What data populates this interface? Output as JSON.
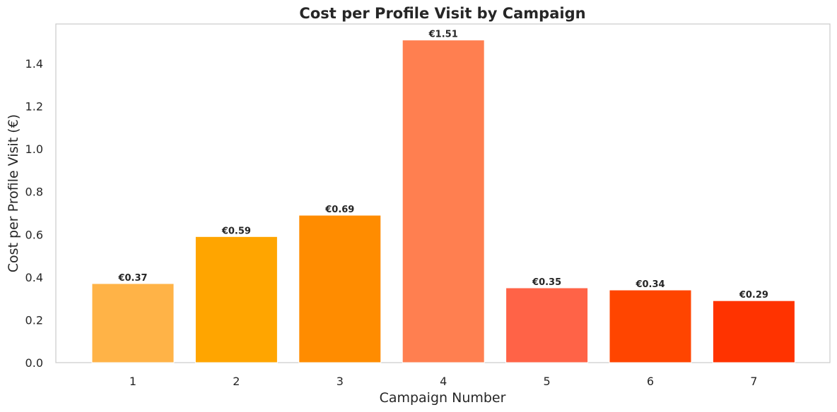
{
  "chart_data": {
    "type": "bar",
    "title": "Cost per Profile Visit by Campaign",
    "xlabel": "Campaign Number",
    "ylabel": "Cost per Profile Visit (€)",
    "categories": [
      "1",
      "2",
      "3",
      "4",
      "5",
      "6",
      "7"
    ],
    "values": [
      0.37,
      0.59,
      0.69,
      1.51,
      0.35,
      0.34,
      0.29
    ],
    "value_labels": [
      "€0.37",
      "€0.59",
      "€0.69",
      "€1.51",
      "€0.35",
      "€0.34",
      "€0.29"
    ],
    "colors": [
      "#FFB347",
      "#FFA500",
      "#FF8C00",
      "#FF7F50",
      "#FF6347",
      "#FF4500",
      "#FF3300"
    ],
    "ylim": [
      0,
      1.585
    ],
    "yticks": [
      0.0,
      0.2,
      0.4,
      0.6,
      0.8,
      1.0,
      1.2,
      1.4
    ],
    "ytick_labels": [
      "0.0",
      "0.2",
      "0.4",
      "0.6",
      "0.8",
      "1.0",
      "1.2",
      "1.4"
    ],
    "grid": false,
    "legend": "none"
  }
}
